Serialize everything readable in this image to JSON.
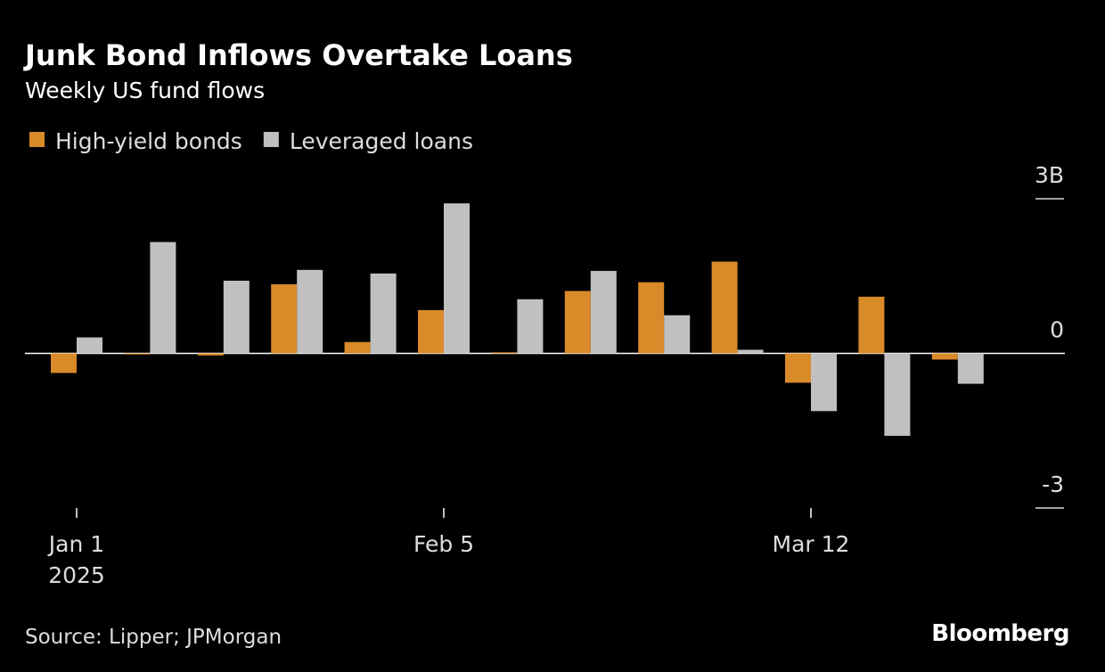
{
  "chart_data": {
    "type": "bar",
    "title": "Junk Bond Inflows Overtake Loans",
    "subtitle": "Weekly US fund flows",
    "categories": [
      "Jan 1",
      null,
      null,
      null,
      null,
      "Feb 5",
      null,
      null,
      null,
      null,
      "Mar 12",
      null,
      null
    ],
    "year_label": "2025",
    "series": [
      {
        "name": "High-yield bonds",
        "color": "#d98a29",
        "values": [
          -0.38,
          -0.02,
          -0.04,
          1.34,
          0.22,
          0.84,
          0.02,
          1.21,
          1.38,
          1.78,
          -0.57,
          1.1,
          -0.12
        ]
      },
      {
        "name": "Leveraged loans",
        "color": "#c0c0c0",
        "values": [
          0.31,
          2.16,
          1.41,
          1.62,
          1.55,
          2.91,
          1.05,
          1.6,
          0.74,
          0.07,
          -1.12,
          -1.6,
          -0.59
        ]
      }
    ],
    "ylim": [
      -3,
      3
    ],
    "yticks": [
      {
        "value": 3,
        "label": "3B"
      },
      0,
      -3
    ],
    "source": "Source: Lipper; JPMorgan",
    "brand": "Bloomberg"
  }
}
